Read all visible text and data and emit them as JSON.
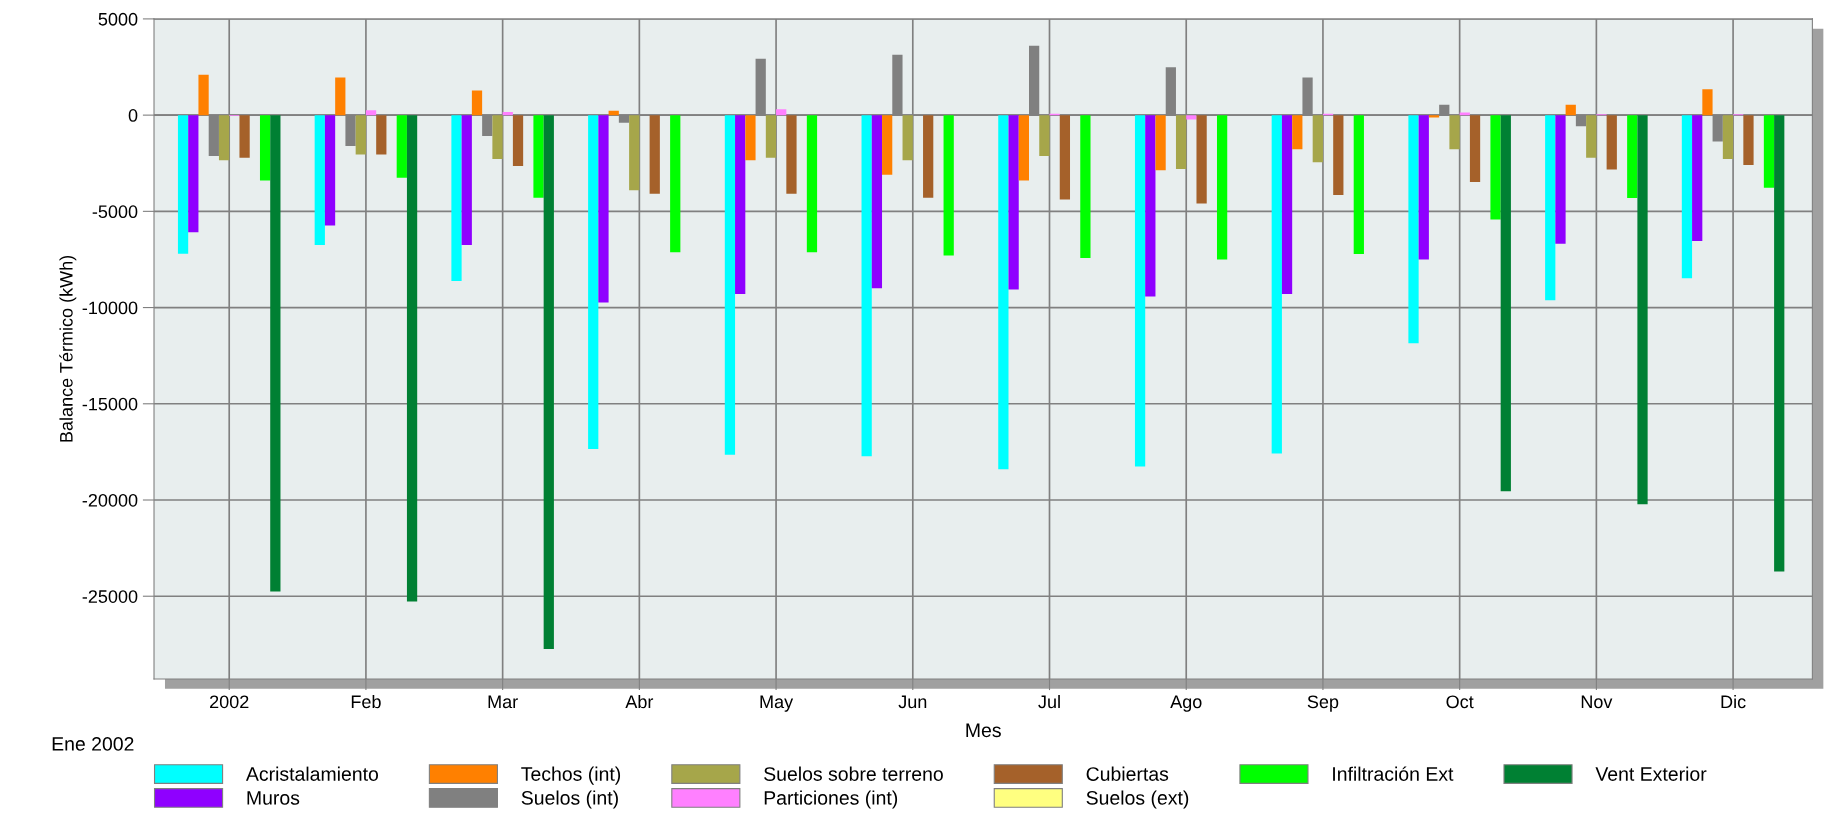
{
  "chart_data": {
    "type": "bar",
    "ylabel": "Balance Térmico (kWh)",
    "xlabel": "Mes",
    "categories": [
      "2002",
      "Feb",
      "Mar",
      "Abr",
      "May",
      "Jun",
      "Jul",
      "Ago",
      "Sep",
      "Oct",
      "Nov",
      "Dic"
    ],
    "annotations": [
      "Ene 2002"
    ],
    "ylim": [
      -29300,
      5000
    ],
    "yticks": [
      5000,
      0,
      -5000,
      -10000,
      -15000,
      -20000,
      -25000
    ],
    "grid": true,
    "legend": "bottom",
    "series": [
      {
        "name": "Acristalamiento",
        "color": "#00ffff",
        "values": [
          -7200,
          -6750,
          -8620,
          -17350,
          -17650,
          -17720,
          -18400,
          -18260,
          -17580,
          -11850,
          -9620,
          -8480
        ]
      },
      {
        "name": "Muros",
        "color": "#8f00ff",
        "values": [
          -6080,
          -5730,
          -6750,
          -9740,
          -9290,
          -8990,
          -9060,
          -9430,
          -9290,
          -7500,
          -6680,
          -6540
        ]
      },
      {
        "name": "Techos (int)",
        "color": "#ff8000",
        "values": [
          2100,
          1960,
          1280,
          230,
          -2350,
          -3100,
          -3400,
          -2860,
          -1770,
          -120,
          540,
          1350
        ]
      },
      {
        "name": "Suelos (int)",
        "color": "#808080",
        "values": [
          -2120,
          -1610,
          -1090,
          -400,
          2930,
          3140,
          3610,
          2490,
          1960,
          540,
          -580,
          -1370
        ]
      },
      {
        "name": "Suelos sobre terreno",
        "color": "#a6a64a",
        "values": [
          -2350,
          -2050,
          -2280,
          -3910,
          -2210,
          -2350,
          -2120,
          -2800,
          -2450,
          -1770,
          -2210,
          -2280
        ]
      },
      {
        "name": "Particiones (int)",
        "color": "#ff80ff",
        "values": [
          -50,
          250,
          160,
          0,
          300,
          0,
          70,
          -230,
          70,
          140,
          50,
          50
        ]
      },
      {
        "name": "Cubiertas",
        "color": "#a5612a",
        "values": [
          -2210,
          -2050,
          -2650,
          -4080,
          -4080,
          -4290,
          -4380,
          -4590,
          -4150,
          -3470,
          -2820,
          -2590
        ]
      },
      {
        "name": "Suelos (ext)",
        "color": "#ffff80",
        "values": [
          0,
          0,
          0,
          0,
          0,
          0,
          0,
          0,
          0,
          0,
          0,
          0
        ]
      },
      {
        "name": "Infiltración Ext",
        "color": "#00ff00",
        "values": [
          -3400,
          -3260,
          -4290,
          -7130,
          -7130,
          -7290,
          -7430,
          -7500,
          -7220,
          -5430,
          -4310,
          -3770
        ]
      },
      {
        "name": "Vent Exterior",
        "color": "#008033",
        "values": [
          -24760,
          -25270,
          -27740,
          0,
          0,
          0,
          0,
          0,
          0,
          -19540,
          -20220,
          -23710
        ]
      }
    ]
  }
}
